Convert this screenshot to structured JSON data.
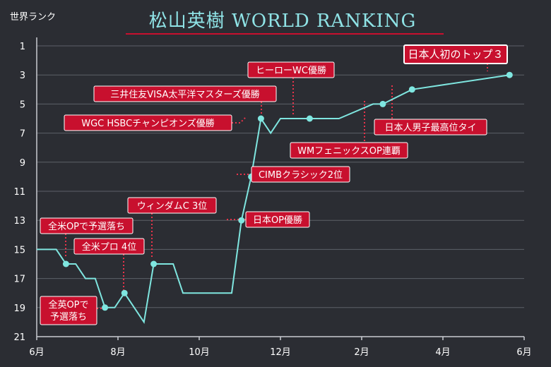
{
  "chart_data": {
    "type": "line",
    "title": "松山英樹  WORLD RANKING",
    "ylabel": "世界ランク",
    "y_inverted": true,
    "ylim": [
      1,
      21
    ],
    "yticks": [
      1,
      3,
      5,
      7,
      9,
      11,
      13,
      15,
      17,
      19,
      21
    ],
    "xlim": [
      0,
      12
    ],
    "xticks": [
      {
        "v": 0,
        "label": "6月"
      },
      {
        "v": 2,
        "label": "8月"
      },
      {
        "v": 4,
        "label": "10月"
      },
      {
        "v": 6,
        "label": "12月"
      },
      {
        "v": 8,
        "label": "2月"
      },
      {
        "v": 10,
        "label": "4月"
      },
      {
        "v": 12,
        "label": "6月"
      }
    ],
    "grid": true,
    "series": [
      {
        "points": [
          [
            0.0,
            15
          ],
          [
            0.24,
            15
          ],
          [
            0.48,
            15
          ],
          [
            0.72,
            16
          ],
          [
            0.96,
            16
          ],
          [
            1.2,
            17
          ],
          [
            1.44,
            17
          ],
          [
            1.68,
            19
          ],
          [
            1.92,
            19
          ],
          [
            2.16,
            18
          ],
          [
            2.4,
            19
          ],
          [
            2.64,
            20
          ],
          [
            2.88,
            16
          ],
          [
            3.12,
            16
          ],
          [
            3.36,
            16
          ],
          [
            3.6,
            18
          ],
          [
            3.84,
            18
          ],
          [
            4.08,
            18
          ],
          [
            4.32,
            18
          ],
          [
            4.56,
            18
          ],
          [
            4.8,
            18
          ],
          [
            5.04,
            13
          ],
          [
            5.28,
            10
          ],
          [
            5.52,
            6
          ],
          [
            5.76,
            7
          ],
          [
            6.0,
            6
          ],
          [
            6.24,
            6
          ],
          [
            6.48,
            6
          ],
          [
            6.72,
            6
          ],
          [
            6.96,
            6
          ],
          [
            7.2,
            6
          ],
          [
            7.44,
            6
          ],
          [
            8.28,
            5
          ],
          [
            8.52,
            5
          ],
          [
            9.24,
            4
          ],
          [
            11.64,
            3
          ]
        ],
        "markers": [
          3,
          7,
          9,
          12,
          21,
          22,
          23,
          28,
          33,
          34,
          35
        ]
      }
    ],
    "annotations": [
      {
        "id": "ann-us-open",
        "text": "全米OPで予選落ち",
        "point": 3
      },
      {
        "id": "ann-pga",
        "text": "全米プロ 4位",
        "point": 9
      },
      {
        "id": "ann-british-open",
        "lines": [
          "全英OPで",
          "予選落ち"
        ],
        "point": 7
      },
      {
        "id": "ann-wyndham",
        "text": "ウィンダムC 3位",
        "point": 12
      },
      {
        "id": "ann-japan-open",
        "text": "日本OP優勝",
        "point": 21
      },
      {
        "id": "ann-cimb",
        "text": "CIMBクラシック2位",
        "point": 22
      },
      {
        "id": "ann-wgc-hsbc",
        "text": "WGC HSBCチャンピオンズ優勝",
        "point": 23
      },
      {
        "id": "ann-mitsui",
        "text": "三井住友VISA太平洋マスターズ優勝",
        "point": 24
      },
      {
        "id": "ann-hero",
        "text": "ヒーローWC優勝",
        "point": 28
      },
      {
        "id": "ann-wm",
        "text": "WMフェニックスOP連覇",
        "point": 33
      },
      {
        "id": "ann-japanese-best",
        "text": "日本人男子最高位タイ",
        "point": 34
      },
      {
        "id": "ann-top3",
        "text": "日本人初のトップ３",
        "point": 35
      }
    ]
  }
}
